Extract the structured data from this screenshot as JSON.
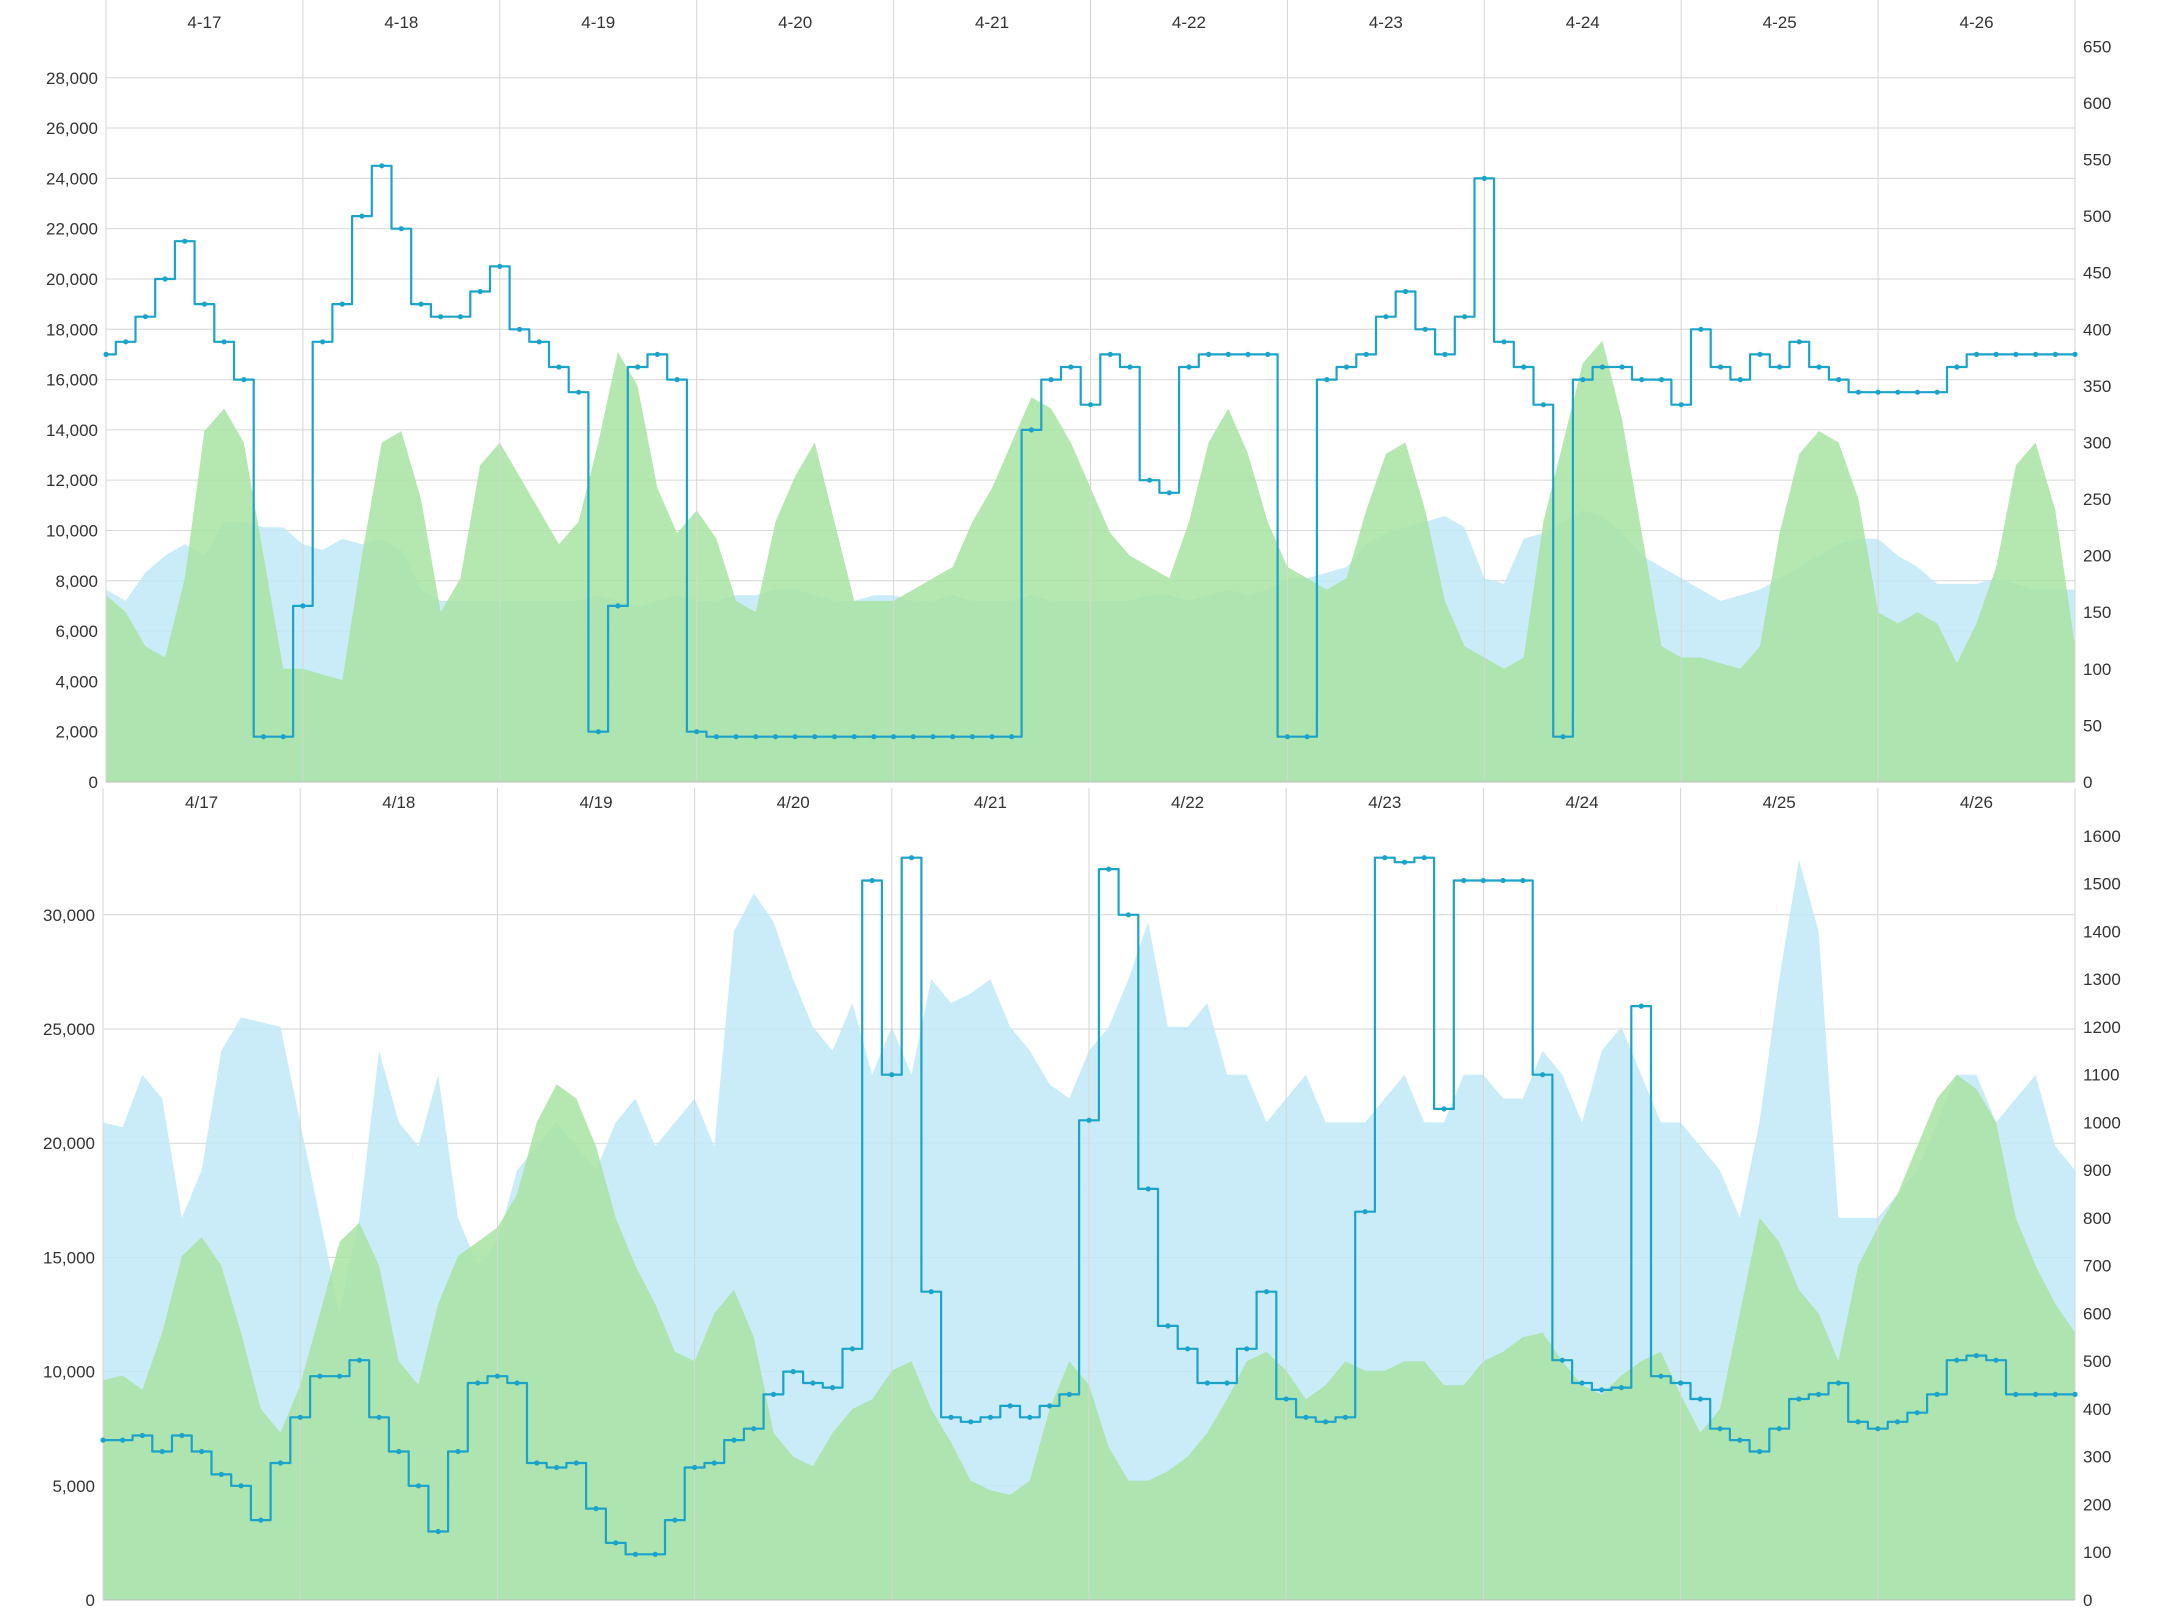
{
  "colors": {
    "line": "#1ba3c9",
    "cyan_area": "#bfe9f7",
    "green_area": "#a8e3a3",
    "yellow_area": "#e0f2a9",
    "grid": "#d6d6d6",
    "text": "#333333"
  },
  "chart_data": [
    {
      "type": "line",
      "x_tick_labels": [
        "4-17",
        "4-18",
        "4-19",
        "4-20",
        "4-21",
        "4-22",
        "4-23",
        "4-24",
        "4-25",
        "4-26"
      ],
      "y_ticks_left": [
        "0",
        "2,000",
        "4,000",
        "6,000",
        "8,000",
        "10,000",
        "12,000",
        "14,000",
        "16,000",
        "18,000",
        "20,000",
        "22,000",
        "24,000",
        "26,000",
        "28,000"
      ],
      "y_ticks_right": [
        "0",
        "50",
        "100",
        "150",
        "200",
        "250",
        "300",
        "350",
        "400",
        "450",
        "500",
        "550",
        "600",
        "650"
      ],
      "ylim_left": [
        0,
        29700
      ],
      "ylim_right": [
        0,
        660
      ],
      "grid": true,
      "x": [
        0,
        0.1,
        0.2,
        0.3,
        0.4,
        0.5,
        0.6,
        0.7,
        0.8,
        0.9,
        1,
        1.1,
        1.2,
        1.3,
        1.4,
        1.5,
        1.6,
        1.7,
        1.8,
        1.9,
        2,
        2.1,
        2.2,
        2.3,
        2.4,
        2.5,
        2.6,
        2.7,
        2.8,
        2.9,
        3,
        3.1,
        3.2,
        3.3,
        3.4,
        3.5,
        3.6,
        3.7,
        3.8,
        3.9,
        4,
        4.1,
        4.2,
        4.3,
        4.4,
        4.5,
        4.6,
        4.7,
        4.8,
        4.9,
        5,
        5.1,
        5.2,
        5.3,
        5.4,
        5.5,
        5.6,
        5.7,
        5.8,
        5.9,
        6,
        6.1,
        6.2,
        6.3,
        6.4,
        6.5,
        6.6,
        6.7,
        6.8,
        6.9,
        7,
        7.1,
        7.2,
        7.3,
        7.4,
        7.5,
        7.6,
        7.7,
        7.8,
        7.9,
        8,
        8.1,
        8.2,
        8.3,
        8.4,
        8.5,
        8.6,
        8.7,
        8.8,
        8.9,
        9,
        9.1,
        9.2,
        9.3,
        9.4,
        9.5,
        9.6,
        9.7,
        9.8,
        9.9,
        10
      ],
      "series": [
        {
          "role": "area",
          "color_key": "yellow_area",
          "axis": "right",
          "values": [
            60,
            62,
            65,
            62,
            68,
            60,
            58,
            62,
            68,
            70,
            72,
            70,
            68,
            72,
            68,
            64,
            60,
            58,
            58,
            58,
            58,
            56,
            58,
            60,
            62,
            62,
            62,
            64,
            62,
            60,
            62,
            58,
            55,
            60,
            64,
            66,
            68,
            64,
            62,
            65,
            66,
            64,
            60,
            62,
            62,
            60,
            64,
            62,
            66,
            65,
            68,
            66,
            62,
            64,
            66,
            66,
            66,
            64,
            62,
            62,
            60,
            62,
            62,
            60,
            62,
            64,
            66,
            68,
            66,
            66,
            64,
            60,
            58,
            60,
            62,
            64,
            64,
            66,
            68,
            70,
            72,
            72,
            72,
            74,
            74,
            74,
            74,
            72,
            70,
            72,
            72,
            72,
            70,
            72,
            72,
            72,
            74,
            74,
            76,
            76,
            76
          ]
        },
        {
          "role": "area",
          "color_key": "cyan_area",
          "axis": "right",
          "values": [
            170,
            160,
            185,
            200,
            210,
            200,
            230,
            230,
            225,
            225,
            210,
            205,
            215,
            210,
            215,
            205,
            170,
            160,
            160,
            160,
            160,
            160,
            160,
            160,
            160,
            165,
            160,
            155,
            160,
            165,
            160,
            160,
            165,
            165,
            170,
            170,
            165,
            160,
            160,
            165,
            165,
            160,
            160,
            165,
            160,
            160,
            160,
            165,
            160,
            160,
            160,
            160,
            160,
            165,
            165,
            160,
            165,
            170,
            165,
            170,
            180,
            180,
            185,
            190,
            210,
            220,
            225,
            230,
            235,
            225,
            180,
            175,
            215,
            220,
            230,
            240,
            235,
            220,
            200,
            190,
            180,
            170,
            160,
            165,
            170,
            180,
            190,
            200,
            210,
            215,
            215,
            200,
            190,
            175,
            175,
            175,
            180,
            175,
            170,
            170,
            170
          ]
        },
        {
          "role": "area",
          "color_key": "green_area",
          "axis": "right",
          "values": [
            165,
            150,
            120,
            110,
            180,
            310,
            330,
            300,
            200,
            100,
            100,
            95,
            90,
            200,
            300,
            310,
            250,
            150,
            180,
            280,
            300,
            270,
            240,
            210,
            230,
            300,
            380,
            350,
            260,
            220,
            240,
            215,
            160,
            150,
            230,
            270,
            300,
            230,
            160,
            160,
            160,
            170,
            180,
            190,
            230,
            260,
            300,
            340,
            330,
            300,
            260,
            220,
            200,
            190,
            180,
            230,
            300,
            330,
            290,
            230,
            190,
            180,
            170,
            180,
            240,
            290,
            300,
            240,
            160,
            120,
            110,
            100,
            110,
            230,
            300,
            370,
            390,
            320,
            220,
            120,
            110,
            110,
            105,
            100,
            120,
            220,
            290,
            310,
            300,
            250,
            150,
            140,
            150,
            140,
            105,
            140,
            190,
            280,
            300,
            240,
            120
          ]
        },
        {
          "role": "line",
          "color_key": "line",
          "axis": "left",
          "values": [
            17000,
            17500,
            18500,
            20000,
            21500,
            19000,
            17500,
            16000,
            1800,
            1800,
            7000,
            17500,
            19000,
            22500,
            24500,
            22000,
            19000,
            18500,
            18500,
            19500,
            20500,
            18000,
            17500,
            16500,
            15500,
            2000,
            7000,
            16500,
            17000,
            16000,
            2000,
            1800,
            1800,
            1800,
            1800,
            1800,
            1800,
            1800,
            1800,
            1800,
            1800,
            1800,
            1800,
            1800,
            1800,
            1800,
            1800,
            14000,
            16000,
            16500,
            15000,
            17000,
            16500,
            12000,
            11500,
            16500,
            17000,
            17000,
            17000,
            17000,
            1800,
            1800,
            16000,
            16500,
            17000,
            18500,
            19500,
            18000,
            17000,
            18500,
            24000,
            17500,
            16500,
            15000,
            1800,
            16000,
            16500,
            16500,
            16000,
            16000,
            15000,
            18000,
            16500,
            16000,
            17000,
            16500,
            17500,
            16500,
            16000,
            15500,
            15500,
            15500,
            15500,
            15500,
            16500,
            17000,
            17000,
            17000,
            17000,
            17000,
            17000
          ]
        }
      ]
    },
    {
      "type": "line",
      "x_tick_labels": [
        "4/17",
        "4/18",
        "4/19",
        "4/20",
        "4/21",
        "4/22",
        "4/23",
        "4/24",
        "4/25",
        "4/26"
      ],
      "y_ticks_left": [
        "0",
        "5,000",
        "10,000",
        "15,000",
        "20,000",
        "25,000",
        "30,000"
      ],
      "y_ticks_right": [
        "0",
        "100",
        "200",
        "300",
        "400",
        "500",
        "600",
        "700",
        "800",
        "900",
        "1000",
        "1100",
        "1200",
        "1300",
        "1400",
        "1500",
        "1600"
      ],
      "ylim_left": [
        0,
        34500
      ],
      "ylim_right": [
        0,
        1650
      ],
      "grid": true,
      "x": [
        0,
        0.1,
        0.2,
        0.3,
        0.4,
        0.5,
        0.6,
        0.7,
        0.8,
        0.9,
        1,
        1.1,
        1.2,
        1.3,
        1.4,
        1.5,
        1.6,
        1.7,
        1.8,
        1.9,
        2,
        2.1,
        2.2,
        2.3,
        2.4,
        2.5,
        2.6,
        2.7,
        2.8,
        2.9,
        3,
        3.1,
        3.2,
        3.3,
        3.4,
        3.5,
        3.6,
        3.7,
        3.8,
        3.9,
        4,
        4.1,
        4.2,
        4.3,
        4.4,
        4.5,
        4.6,
        4.7,
        4.8,
        4.9,
        5,
        5.1,
        5.2,
        5.3,
        5.4,
        5.5,
        5.6,
        5.7,
        5.8,
        5.9,
        6,
        6.1,
        6.2,
        6.3,
        6.4,
        6.5,
        6.6,
        6.7,
        6.8,
        6.9,
        7,
        7.1,
        7.2,
        7.3,
        7.4,
        7.5,
        7.6,
        7.7,
        7.8,
        7.9,
        8,
        8.1,
        8.2,
        8.3,
        8.4,
        8.5,
        8.6,
        8.7,
        8.8,
        8.9,
        9,
        9.1,
        9.2,
        9.3,
        9.4,
        9.5,
        9.6,
        9.7,
        9.8,
        9.9,
        10
      ],
      "series": [
        {
          "role": "area",
          "color_key": "cyan_area",
          "axis": "right",
          "values": [
            1000,
            990,
            1100,
            1050,
            800,
            900,
            1150,
            1220,
            1210,
            1200,
            1000,
            800,
            600,
            800,
            1150,
            1000,
            950,
            1100,
            800,
            700,
            750,
            900,
            950,
            1000,
            950,
            900,
            1000,
            1050,
            950,
            1000,
            1050,
            950,
            1400,
            1480,
            1420,
            1300,
            1200,
            1150,
            1250,
            1100,
            1200,
            1100,
            1300,
            1250,
            1270,
            1300,
            1200,
            1150,
            1080,
            1050,
            1150,
            1200,
            1300,
            1420,
            1200,
            1200,
            1250,
            1100,
            1100,
            1000,
            1050,
            1100,
            1000,
            1000,
            1000,
            1050,
            1100,
            1000,
            1000,
            1100,
            1100,
            1050,
            1050,
            1150,
            1100,
            1000,
            1150,
            1200,
            1100,
            1000,
            1000,
            950,
            900,
            800,
            1000,
            1300,
            1550,
            1400,
            800,
            800,
            800,
            850,
            900,
            1000,
            1100,
            1100,
            1000,
            1050,
            1100,
            950,
            900
          ]
        },
        {
          "role": "area",
          "color_key": "green_area",
          "axis": "right",
          "values": [
            460,
            470,
            440,
            560,
            720,
            760,
            700,
            560,
            400,
            350,
            450,
            600,
            750,
            790,
            700,
            500,
            450,
            620,
            720,
            750,
            780,
            850,
            1000,
            1080,
            1050,
            950,
            800,
            700,
            620,
            520,
            500,
            600,
            650,
            550,
            350,
            300,
            280,
            350,
            400,
            420,
            480,
            500,
            400,
            330,
            250,
            230,
            220,
            250,
            400,
            500,
            450,
            320,
            250,
            250,
            270,
            300,
            350,
            420,
            500,
            520,
            480,
            420,
            450,
            500,
            480,
            480,
            500,
            500,
            450,
            450,
            500,
            520,
            550,
            560,
            500,
            450,
            430,
            470,
            500,
            520,
            430,
            350,
            400,
            600,
            800,
            750,
            650,
            600,
            500,
            700,
            780,
            850,
            950,
            1050,
            1100,
            1070,
            1000,
            800,
            700,
            620,
            560
          ]
        },
        {
          "role": "line",
          "color_key": "line",
          "axis": "left",
          "values": [
            7000,
            7000,
            7200,
            6500,
            7200,
            6500,
            5500,
            5000,
            3500,
            6000,
            8000,
            9800,
            9800,
            10500,
            8000,
            6500,
            5000,
            3000,
            6500,
            9500,
            9800,
            9500,
            6000,
            5800,
            6000,
            4000,
            2500,
            2000,
            2000,
            3500,
            5800,
            6000,
            7000,
            7500,
            9000,
            10000,
            9500,
            9300,
            11000,
            31500,
            23000,
            32500,
            13500,
            8000,
            7800,
            8000,
            8500,
            8000,
            8500,
            9000,
            21000,
            32000,
            30000,
            18000,
            12000,
            11000,
            9500,
            9500,
            11000,
            13500,
            8800,
            8000,
            7800,
            8000,
            17000,
            32500,
            32300,
            32500,
            21500,
            31500,
            31500,
            31500,
            31500,
            23000,
            10500,
            9500,
            9200,
            9300,
            26000,
            9800,
            9500,
            8800,
            7500,
            7000,
            6500,
            7500,
            8800,
            9000,
            9500,
            7800,
            7500,
            7800,
            8200,
            9000,
            10500,
            10700,
            10500,
            9000,
            9000,
            9000,
            9000
          ]
        }
      ]
    }
  ]
}
